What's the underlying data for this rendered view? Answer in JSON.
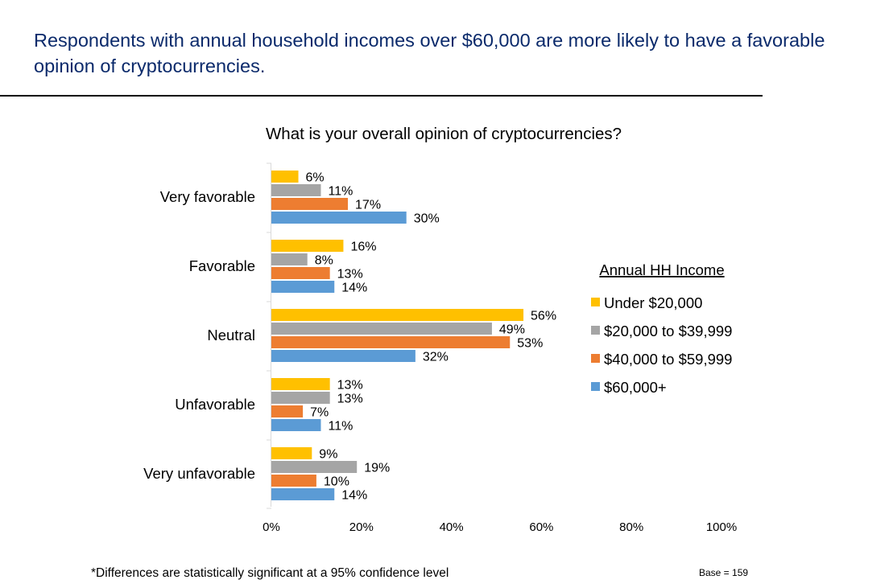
{
  "slide": {
    "title": "Respondents with annual household incomes over $60,000 are more likely to have a favorable opinion of cryptocurrencies.",
    "footnote": "*Differences are statistically significant at a 95% confidence level",
    "base": "Base = 159"
  },
  "chart_data": {
    "type": "bar",
    "orientation": "horizontal",
    "title": "What is your overall opinion of cryptocurrencies?",
    "categories": [
      "Very favorable",
      "Favorable",
      "Neutral",
      "Unfavorable",
      "Very unfavorable"
    ],
    "legend_title": "Annual HH Income",
    "legend_position": "right",
    "series": [
      {
        "name": "Under $20,000",
        "color": "#ffc000",
        "values": [
          6,
          16,
          56,
          13,
          9
        ]
      },
      {
        "name": "$20,000 to $39,999",
        "color": "#a5a5a5",
        "values": [
          11,
          8,
          49,
          13,
          19
        ]
      },
      {
        "name": "$40,000 to $59,999",
        "color": "#ed7d31",
        "values": [
          17,
          13,
          53,
          7,
          10
        ]
      },
      {
        "name": "$60,000+",
        "color": "#5b9bd5",
        "values": [
          30,
          14,
          32,
          11,
          14
        ]
      }
    ],
    "value_suffix": "%",
    "xlim": [
      0,
      100
    ],
    "xticks": [
      0,
      20,
      40,
      60,
      80,
      100
    ],
    "xtick_labels": [
      "0%",
      "20%",
      "40%",
      "60%",
      "80%",
      "100%"
    ],
    "grid": false
  }
}
